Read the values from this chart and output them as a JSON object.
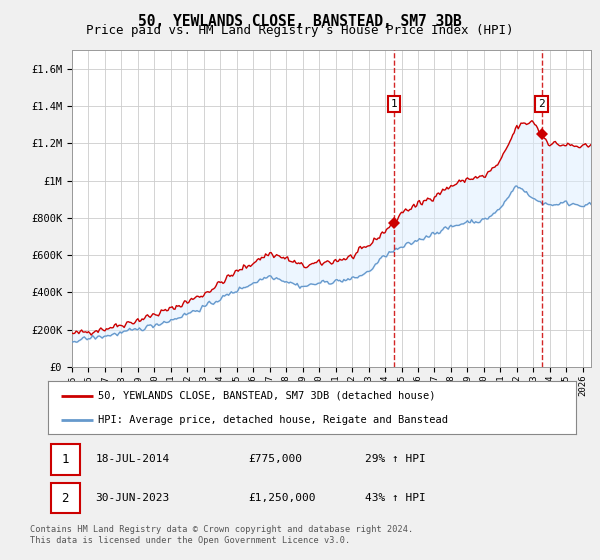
{
  "title": "50, YEWLANDS CLOSE, BANSTEAD, SM7 3DB",
  "subtitle": "Price paid vs. HM Land Registry's House Price Index (HPI)",
  "legend_line1": "50, YEWLANDS CLOSE, BANSTEAD, SM7 3DB (detached house)",
  "legend_line2": "HPI: Average price, detached house, Reigate and Banstead",
  "footnote": "Contains HM Land Registry data © Crown copyright and database right 2024.\nThis data is licensed under the Open Government Licence v3.0.",
  "table": [
    {
      "num": "1",
      "date": "18-JUL-2014",
      "price": "£775,000",
      "hpi": "29% ↑ HPI"
    },
    {
      "num": "2",
      "date": "30-JUN-2023",
      "price": "£1,250,000",
      "hpi": "43% ↑ HPI"
    }
  ],
  "ylim": [
    0,
    1700000
  ],
  "yticks": [
    0,
    200000,
    400000,
    600000,
    800000,
    1000000,
    1200000,
    1400000,
    1600000
  ],
  "ytick_labels": [
    "£0",
    "£200K",
    "£400K",
    "£600K",
    "£800K",
    "£1M",
    "£1.2M",
    "£1.4M",
    "£1.6M"
  ],
  "xlim_start": 1995.0,
  "xlim_end": 2026.5,
  "line_color_red": "#cc0000",
  "line_color_blue": "#6699cc",
  "fill_color_blue": "#ddeeff",
  "background_color": "#f0f0f0",
  "plot_bg": "#ffffff",
  "grid_color": "#cccccc",
  "point1_x": 2014.54,
  "point1_y": 775000,
  "point2_x": 2023.5,
  "point2_y": 1250000,
  "vline1_x": 2014.54,
  "vline2_x": 2023.5,
  "title_fontsize": 10.5,
  "subtitle_fontsize": 9
}
